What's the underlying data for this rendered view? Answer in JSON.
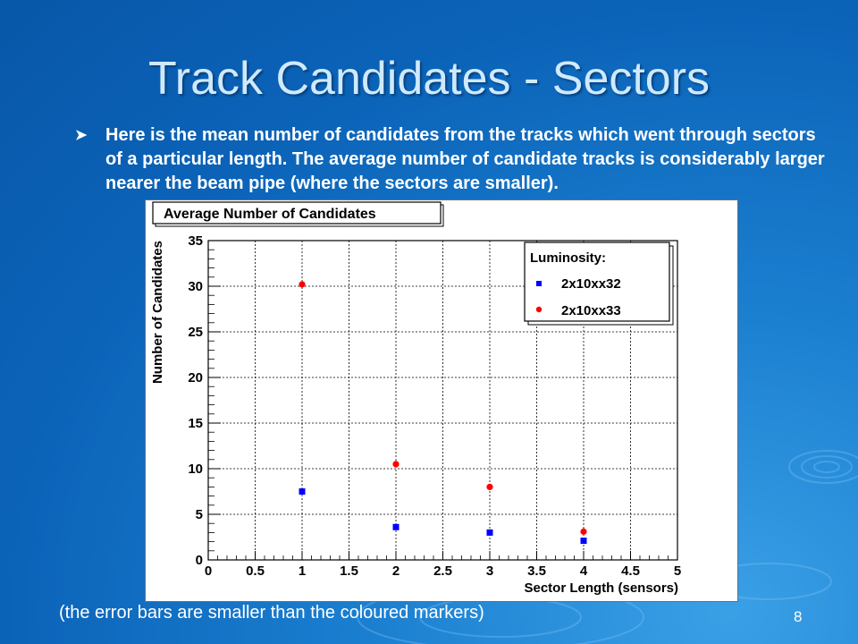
{
  "slide": {
    "title": "Track Candidates - Sectors",
    "bullet_text": "Here is the mean number of candidates from the tracks which went through sectors of a particular length. The average number of candidate tracks is considerably larger nearer the beam pipe (where the sectors are smaller).",
    "caption": "(the error bars are smaller than the coloured markers)",
    "slide_number": "8"
  },
  "chart_data": {
    "type": "scatter",
    "title": "Average Number of Candidates",
    "xlabel": "Sector Length (sensors)",
    "ylabel": "Number of Candidates",
    "xlim": [
      0,
      5
    ],
    "ylim": [
      0,
      35
    ],
    "x_ticks": [
      "0",
      "0.5",
      "1",
      "1.5",
      "2",
      "2.5",
      "3",
      "3.5",
      "4",
      "4.5",
      "5"
    ],
    "y_ticks": [
      "0",
      "5",
      "10",
      "15",
      "20",
      "25",
      "30",
      "35"
    ],
    "grid": true,
    "legend": {
      "title": "Luminosity:",
      "placement": "top-right"
    },
    "series": [
      {
        "name": "2x10xx32",
        "marker": "square",
        "color": "#0000ff",
        "points": [
          {
            "x": 1,
            "y": 7.5
          },
          {
            "x": 2,
            "y": 3.6
          },
          {
            "x": 3,
            "y": 3.0
          },
          {
            "x": 4,
            "y": 2.1
          }
        ]
      },
      {
        "name": "2x10xx33",
        "marker": "circle",
        "color": "#ff0000",
        "points": [
          {
            "x": 1,
            "y": 30.2
          },
          {
            "x": 2,
            "y": 10.5
          },
          {
            "x": 3,
            "y": 8.0
          },
          {
            "x": 4,
            "y": 3.1
          }
        ]
      }
    ]
  }
}
